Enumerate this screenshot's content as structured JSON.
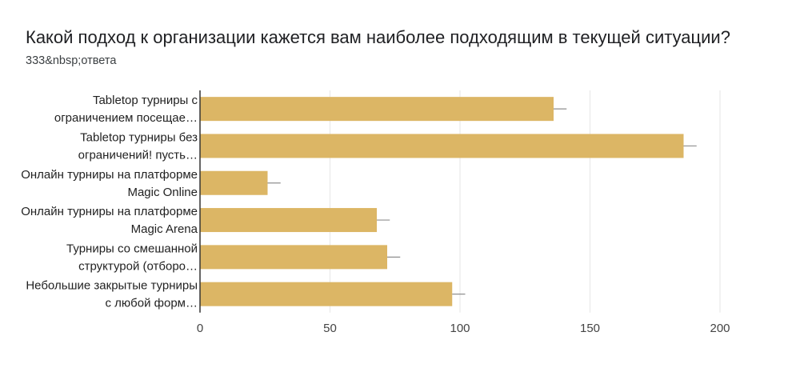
{
  "title": "Какой подход к организации кажется вам наиболее подходящим в текущей ситуации?",
  "subtitle": "333&nbsp;ответа",
  "colors": {
    "bar": "#dcb665",
    "grid": "#e6e6e6",
    "axis": "#333333",
    "errorbar": "#8f8f8f"
  },
  "chart_data": {
    "type": "bar",
    "orientation": "horizontal",
    "categories": [
      [
        "Tabletop турниры с",
        "ограничением посещае…"
      ],
      [
        "Tabletop турниры без",
        "ограничений! пусть…"
      ],
      [
        "Онлайн турниры на платформе",
        "Magic Online"
      ],
      [
        "Онлайн турниры на платформе",
        "Magic Arena"
      ],
      [
        "Турниры со смешанной",
        "структурой (отборо…"
      ],
      [
        "Небольшие закрытые турниры",
        "с любой форм…"
      ]
    ],
    "values": [
      136,
      186,
      26,
      68,
      72,
      97
    ],
    "error_upper": [
      141,
      191,
      31,
      73,
      77,
      102
    ],
    "xlim": [
      0,
      200
    ],
    "xticks": [
      "0",
      "50",
      "100",
      "150",
      "200"
    ],
    "grid": true
  }
}
